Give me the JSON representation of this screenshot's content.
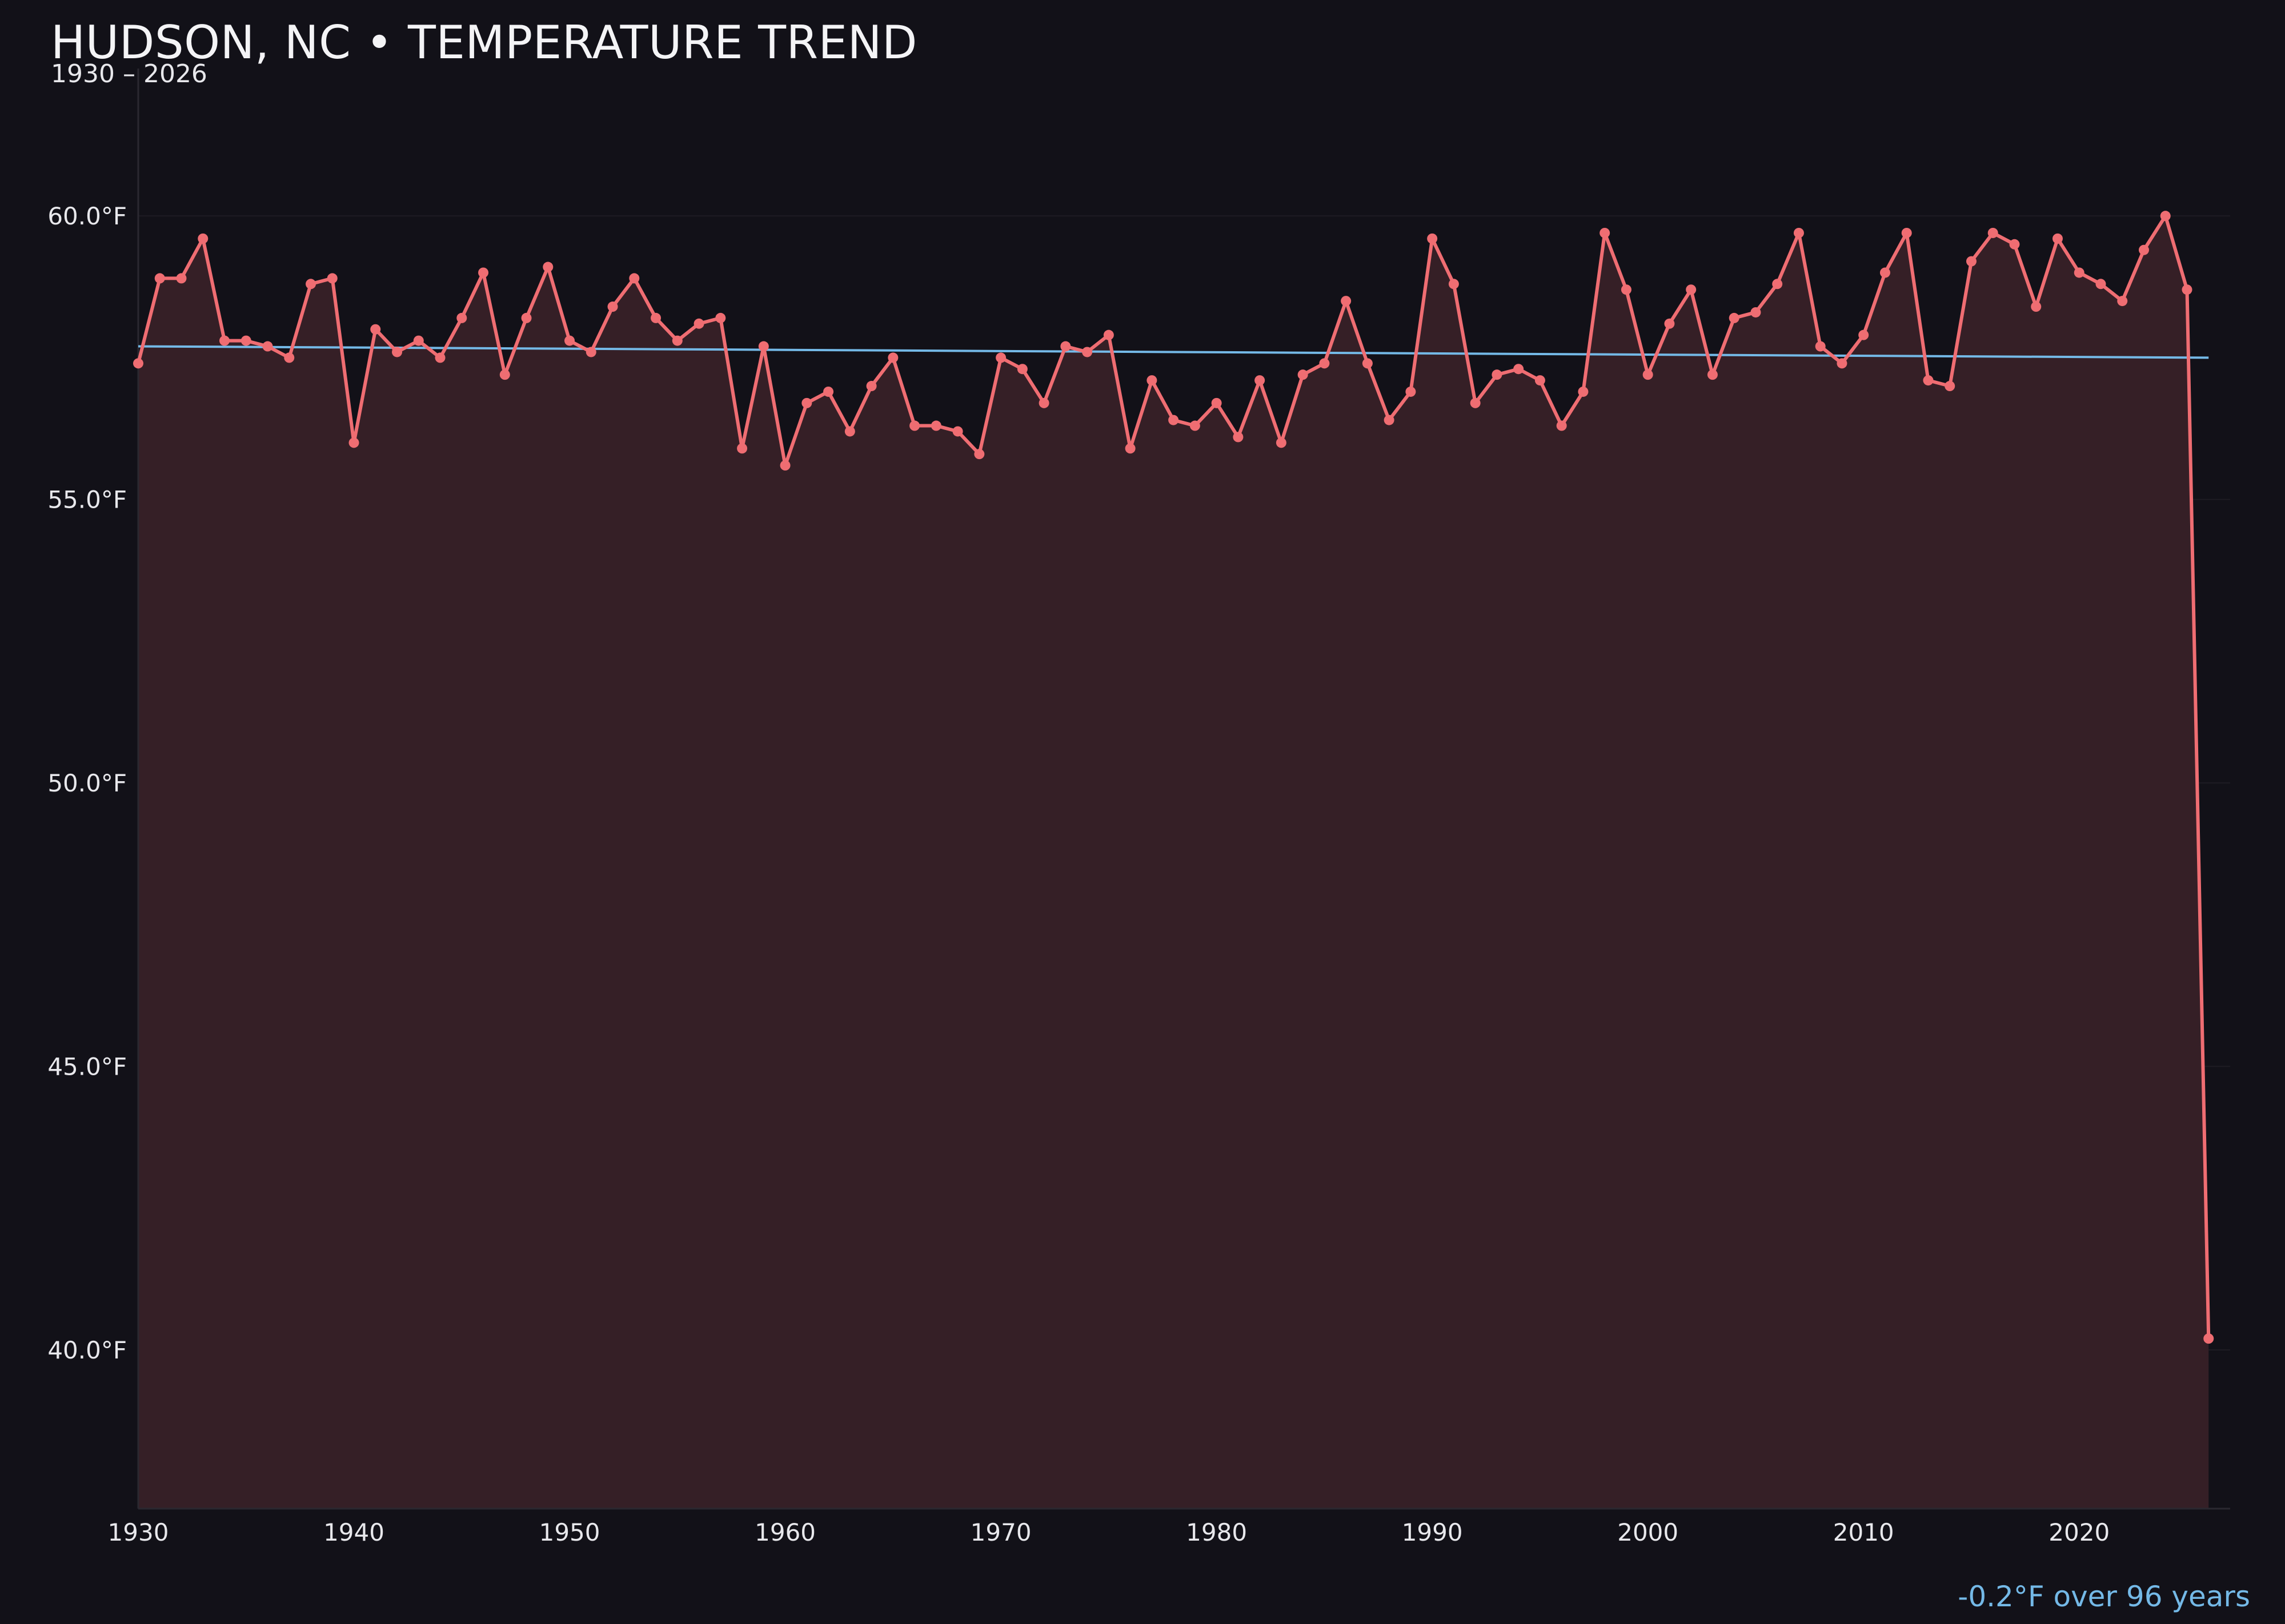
{
  "chart_data": {
    "type": "line",
    "title": "HUDSON, NC • TEMPERATURE TREND",
    "subtitle": "1930 – 2026",
    "xlabel": "",
    "ylabel": "",
    "xlim": [
      1930,
      2027
    ],
    "ylim": [
      37.2,
      62.6
    ],
    "y_ticks": [
      40,
      45,
      50,
      55,
      60
    ],
    "y_tick_labels": [
      "40.0°F",
      "45.0°F",
      "50.0°F",
      "55.0°F",
      "60.0°F"
    ],
    "x_ticks": [
      1930,
      1940,
      1950,
      1960,
      1970,
      1980,
      1990,
      2000,
      2010,
      2020
    ],
    "x_tick_labels": [
      "1930",
      "1940",
      "1950",
      "1960",
      "1970",
      "1980",
      "1990",
      "2000",
      "2010",
      "2020"
    ],
    "grid": true,
    "series": [
      {
        "x": [
          1930,
          1931,
          1932,
          1933,
          1934,
          1935,
          1936,
          1937,
          1938,
          1939,
          1940,
          1941,
          1942,
          1943,
          1944,
          1945,
          1946,
          1947,
          1948,
          1949,
          1950,
          1951,
          1952,
          1953,
          1954,
          1955,
          1956,
          1957,
          1958,
          1959,
          1960,
          1961,
          1962,
          1963,
          1964,
          1965,
          1966,
          1967,
          1968,
          1969,
          1970,
          1971,
          1972,
          1973,
          1974,
          1975,
          1976,
          1977,
          1978,
          1979,
          1980,
          1981,
          1982,
          1983,
          1984,
          1985,
          1986,
          1987,
          1988,
          1989,
          1990,
          1991,
          1992,
          1993,
          1994,
          1995,
          1996,
          1997,
          1998,
          1999,
          2000,
          2001,
          2002,
          2003,
          2004,
          2005,
          2006,
          2007,
          2008,
          2009,
          2010,
          2011,
          2012,
          2013,
          2014,
          2015,
          2016,
          2017,
          2018,
          2019,
          2020,
          2021,
          2022,
          2023,
          2024,
          2025,
          2026
        ],
        "y": [
          57.4,
          58.9,
          58.9,
          59.6,
          57.8,
          57.8,
          57.7,
          57.5,
          58.8,
          58.9,
          56.0,
          58.0,
          57.6,
          57.8,
          57.5,
          58.2,
          59.0,
          57.2,
          58.2,
          59.1,
          57.8,
          57.6,
          58.4,
          58.9,
          58.2,
          57.8,
          58.1,
          58.2,
          55.9,
          57.7,
          55.6,
          56.7,
          56.9,
          56.2,
          57.0,
          57.5,
          56.3,
          56.3,
          56.2,
          55.8,
          57.5,
          57.3,
          56.7,
          57.7,
          57.6,
          57.9,
          55.9,
          57.1,
          56.4,
          56.3,
          56.7,
          56.1,
          57.1,
          56.0,
          57.2,
          57.4,
          58.5,
          57.4,
          56.4,
          56.9,
          59.6,
          58.8,
          56.7,
          57.2,
          57.3,
          57.1,
          56.3,
          56.9,
          59.7,
          58.7,
          57.2,
          58.1,
          58.7,
          57.2,
          58.2,
          58.3,
          58.8,
          59.7,
          57.7,
          57.4,
          57.9,
          59.0,
          59.7,
          57.1,
          57.0,
          59.2,
          59.7,
          59.5,
          58.4,
          59.6,
          59.0,
          58.8,
          58.5,
          59.4,
          60.0,
          58.7,
          40.2
        ],
        "color": "#ef6d72"
      }
    ],
    "trend_line": {
      "x": [
        1930,
        2026
      ],
      "y": [
        57.7,
        57.5
      ],
      "color": "#74b9e7"
    },
    "fill_color": "#351f26",
    "grid_color": "#1e1c23",
    "background": "#121118",
    "annotation": "-0.2°F over 96 years"
  }
}
